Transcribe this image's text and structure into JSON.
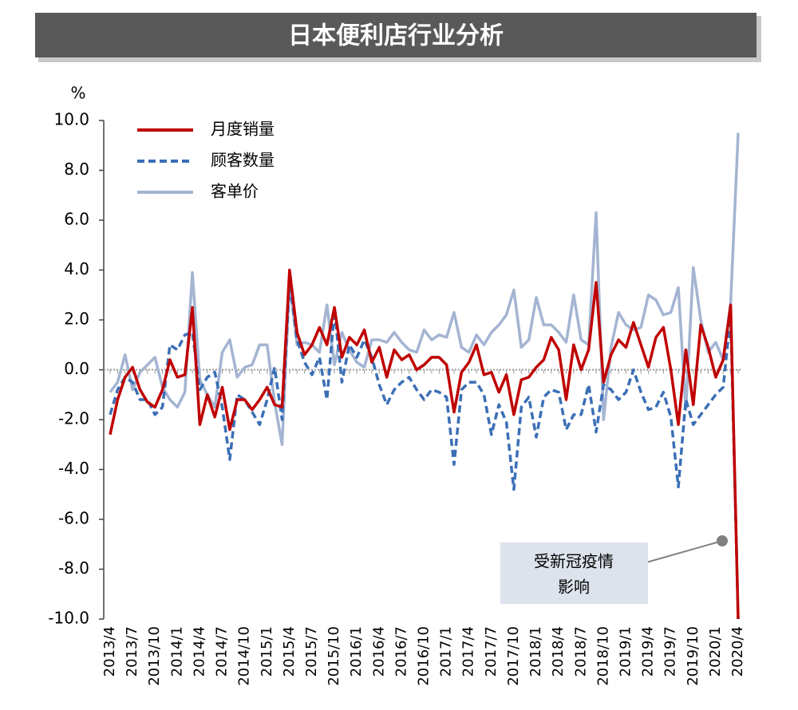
{
  "chart_data": {
    "type": "line",
    "title": "日本便利店行业分析",
    "ylabel": "%",
    "categories": [
      "2013/4",
      null,
      null,
      "2013/7",
      null,
      null,
      "2013/10",
      null,
      null,
      "2014/1",
      null,
      null,
      "2014/4",
      null,
      null,
      "2014/7",
      null,
      null,
      "2014/10",
      null,
      null,
      "2015/1",
      null,
      null,
      "2015/4",
      null,
      null,
      "2015/7",
      null,
      null,
      "2015/10",
      null,
      null,
      "2016/1",
      null,
      null,
      "2016/4",
      null,
      null,
      "2016/7",
      null,
      null,
      "2016/10",
      null,
      null,
      "2017/1",
      null,
      null,
      "2017/4",
      null,
      null,
      "2017/7",
      null,
      null,
      "2017/10",
      null,
      null,
      "2018/1",
      null,
      null,
      "2018/4",
      null,
      null,
      "2018/7",
      null,
      null,
      "2018/10",
      null,
      null,
      "2019/1",
      null,
      null,
      "2019/4",
      null,
      null,
      "2019/7",
      null,
      null,
      "2019/10",
      null,
      null,
      "2020/1",
      null,
      null,
      "2020/4"
    ],
    "series": [
      {
        "name": "月度销量",
        "color": "#c00000",
        "dash": false,
        "values": [
          -2.6,
          -1.2,
          -0.3,
          0.1,
          -0.8,
          -1.3,
          -1.5,
          -0.8,
          0.4,
          -0.3,
          -0.2,
          2.5,
          -2.2,
          -1.0,
          -1.9,
          -0.7,
          -2.4,
          -1.2,
          -1.2,
          -1.6,
          -1.2,
          -0.7,
          -1.4,
          -1.5,
          4.0,
          1.5,
          0.6,
          1.0,
          1.7,
          1.0,
          2.5,
          0.5,
          1.3,
          1.0,
          1.6,
          0.3,
          0.9,
          -0.3,
          0.8,
          0.4,
          0.6,
          0.0,
          0.2,
          0.5,
          0.5,
          0.2,
          -1.7,
          -0.1,
          0.3,
          1.0,
          -0.2,
          -0.1,
          -0.9,
          -0.2,
          -1.8,
          -0.4,
          -0.3,
          0.1,
          0.4,
          1.3,
          0.8,
          -1.2,
          1.0,
          0.0,
          0.8,
          3.5,
          -0.5,
          0.6,
          1.2,
          0.9,
          1.9,
          1.0,
          0.1,
          1.3,
          1.7,
          0.0,
          -2.2,
          0.8,
          -1.4,
          1.8,
          0.9,
          -0.3,
          0.4,
          2.6,
          -10.0
        ]
      },
      {
        "name": "顾客数量",
        "color": "#3b6fb6",
        "dash": true,
        "values": [
          -1.8,
          -0.8,
          -0.3,
          -0.5,
          -1.2,
          -1.2,
          -1.8,
          -1.5,
          1.0,
          0.8,
          1.4,
          1.5,
          -0.8,
          -0.3,
          -0.1,
          -1.5,
          -3.6,
          -1.0,
          -1.2,
          -1.7,
          -2.2,
          -1.2,
          0.1,
          -2.0,
          3.5,
          1.2,
          0.3,
          -0.2,
          0.5,
          -1.2,
          2.4,
          -0.5,
          1.0,
          0.5,
          1.2,
          0.5,
          -0.6,
          -1.4,
          -0.8,
          -0.5,
          -0.3,
          -0.8,
          -1.2,
          -0.8,
          -0.9,
          -1.1,
          -3.8,
          -0.8,
          -0.5,
          -0.5,
          -1.0,
          -2.6,
          -1.4,
          -2.1,
          -4.8,
          -1.5,
          -1.1,
          -2.7,
          -1.1,
          -0.8,
          -0.9,
          -2.4,
          -1.8,
          -1.8,
          -0.6,
          -2.5,
          -0.6,
          -0.8,
          -1.2,
          -0.9,
          0.0,
          -0.9,
          -1.6,
          -1.5,
          -0.9,
          -1.9,
          -4.7,
          -1.2,
          -2.2,
          -1.8,
          -1.4,
          -1.0,
          -0.7,
          2.2,
          -10.0
        ]
      },
      {
        "name": "客单价",
        "color": "#a4b4d2",
        "dash": false,
        "values": [
          -0.9,
          -0.5,
          0.6,
          -0.8,
          -0.1,
          0.2,
          0.5,
          -0.7,
          -1.2,
          -1.5,
          -0.9,
          3.9,
          -0.4,
          -1.0,
          -1.5,
          0.7,
          1.2,
          -0.3,
          0.1,
          0.2,
          1.0,
          1.0,
          -1.3,
          -3.0,
          3.6,
          1.0,
          1.1,
          1.0,
          0.7,
          2.6,
          0.2,
          1.5,
          0.8,
          0.3,
          0.1,
          1.2,
          1.2,
          1.1,
          1.5,
          1.1,
          0.8,
          0.7,
          1.6,
          1.2,
          1.4,
          1.3,
          2.3,
          0.9,
          0.7,
          1.4,
          1.0,
          1.5,
          1.8,
          2.2,
          3.2,
          0.9,
          1.2,
          2.9,
          1.8,
          1.8,
          1.5,
          1.1,
          3.0,
          1.2,
          1.0,
          6.3,
          -2.0,
          0.9,
          2.3,
          1.8,
          1.6,
          1.7,
          3.0,
          2.8,
          2.2,
          2.3,
          3.3,
          -1.6,
          4.1,
          2.0,
          0.7,
          1.1,
          0.4,
          2.7,
          9.5
        ]
      }
    ],
    "ylim": [
      -10,
      10
    ],
    "yticks": [
      {
        "value": -10,
        "label": "-10.0"
      },
      {
        "value": -8,
        "label": "-8.0"
      },
      {
        "value": -6,
        "label": "-6.0"
      },
      {
        "value": -4,
        "label": "-4.0"
      },
      {
        "value": -2,
        "label": "-2.0"
      },
      {
        "value": 0,
        "label": "0.0"
      },
      {
        "value": 2,
        "label": "2.0"
      },
      {
        "value": 4,
        "label": "4.0"
      },
      {
        "value": 6,
        "label": "6.0"
      },
      {
        "value": 8,
        "label": "8.0"
      },
      {
        "value": 10,
        "label": "10.0"
      }
    ],
    "annotation": [
      "受新冠疫情",
      "影响"
    ],
    "legend": "upper-left"
  }
}
